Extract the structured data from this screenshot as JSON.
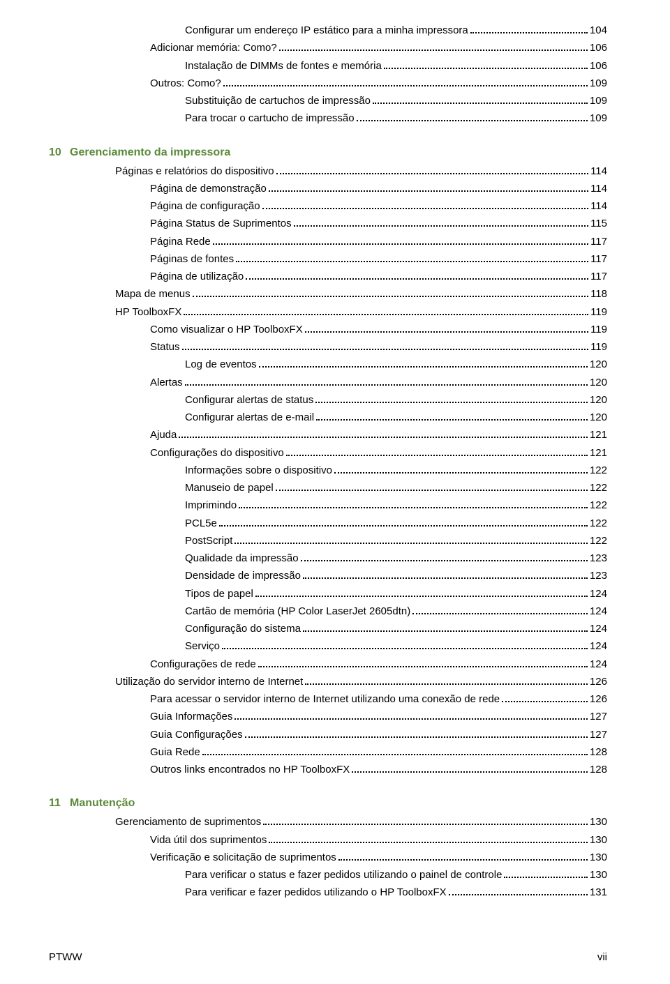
{
  "colors": {
    "chapter_heading": "#5a8a3a",
    "text": "#000000",
    "background": "#ffffff"
  },
  "typography": {
    "body_font": "Arial, sans-serif",
    "body_size_pt": 11,
    "chapter_size_pt": 12,
    "chapter_weight": "bold"
  },
  "toc": [
    {
      "level": 3,
      "label": "Configurar um endereço IP estático para a minha impressora",
      "page": "104"
    },
    {
      "level": 2,
      "label": "Adicionar memória: Como?",
      "page": "106"
    },
    {
      "level": 3,
      "label": "Instalação de DIMMs de fontes e memória",
      "page": "106"
    },
    {
      "level": 2,
      "label": "Outros: Como?",
      "page": "109"
    },
    {
      "level": 3,
      "label": "Substituição de cartuchos de impressão",
      "page": "109"
    },
    {
      "level": 3,
      "label": "Para trocar o cartucho de impressão",
      "page": "109"
    },
    {
      "type": "chapter",
      "num": "10",
      "title": "Gerenciamento da impressora"
    },
    {
      "level": 1,
      "label": "Páginas e relatórios do dispositivo",
      "page": "114"
    },
    {
      "level": 2,
      "label": "Página de demonstração",
      "page": "114"
    },
    {
      "level": 2,
      "label": "Página de configuração",
      "page": "114"
    },
    {
      "level": 2,
      "label": "Página Status de Suprimentos",
      "page": "115"
    },
    {
      "level": 2,
      "label": "Página Rede",
      "page": "117"
    },
    {
      "level": 2,
      "label": "Páginas de fontes",
      "page": "117"
    },
    {
      "level": 2,
      "label": "Página de utilização",
      "page": "117"
    },
    {
      "level": 1,
      "label": "Mapa de menus",
      "page": "118"
    },
    {
      "level": 1,
      "label": "HP ToolboxFX",
      "page": "119"
    },
    {
      "level": 2,
      "label": "Como visualizar o HP ToolboxFX",
      "page": "119"
    },
    {
      "level": 2,
      "label": "Status",
      "page": "119"
    },
    {
      "level": 3,
      "label": "Log de eventos",
      "page": "120"
    },
    {
      "level": 2,
      "label": "Alertas",
      "page": "120"
    },
    {
      "level": 3,
      "label": "Configurar alertas de status",
      "page": "120"
    },
    {
      "level": 3,
      "label": "Configurar alertas de e-mail",
      "page": "120"
    },
    {
      "level": 2,
      "label": "Ajuda",
      "page": "121"
    },
    {
      "level": 2,
      "label": "Configurações do dispositivo",
      "page": "121"
    },
    {
      "level": 3,
      "label": "Informações sobre o dispositivo",
      "page": "122"
    },
    {
      "level": 3,
      "label": "Manuseio de papel",
      "page": "122"
    },
    {
      "level": 3,
      "label": "Imprimindo",
      "page": "122"
    },
    {
      "level": 3,
      "label": "PCL5e",
      "page": "122"
    },
    {
      "level": 3,
      "label": "PostScript",
      "page": "122"
    },
    {
      "level": 3,
      "label": "Qualidade da impressão",
      "page": "123"
    },
    {
      "level": 3,
      "label": "Densidade de impressão",
      "page": "123"
    },
    {
      "level": 3,
      "label": "Tipos de papel",
      "page": "124"
    },
    {
      "level": 3,
      "label": "Cartão de memória (HP Color LaserJet 2605dtn)",
      "page": "124"
    },
    {
      "level": 3,
      "label": "Configuração do sistema",
      "page": "124"
    },
    {
      "level": 3,
      "label": "Serviço",
      "page": "124"
    },
    {
      "level": 2,
      "label": "Configurações de rede",
      "page": "124"
    },
    {
      "level": 1,
      "label": "Utilização do servidor interno de Internet",
      "page": "126"
    },
    {
      "level": 2,
      "label": "Para acessar o servidor interno de Internet utilizando uma conexão de rede",
      "page": "126"
    },
    {
      "level": 2,
      "label": "Guia Informações",
      "page": "127"
    },
    {
      "level": 2,
      "label": "Guia Configurações",
      "page": "127"
    },
    {
      "level": 2,
      "label": "Guia Rede",
      "page": "128"
    },
    {
      "level": 2,
      "label": "Outros links encontrados no HP ToolboxFX",
      "page": "128"
    },
    {
      "type": "chapter",
      "num": "11",
      "title": "Manutenção"
    },
    {
      "level": 1,
      "label": "Gerenciamento de suprimentos",
      "page": "130"
    },
    {
      "level": 2,
      "label": "Vida útil dos suprimentos",
      "page": "130"
    },
    {
      "level": 2,
      "label": "Verificação e solicitação de suprimentos",
      "page": "130"
    },
    {
      "level": 3,
      "label": "Para verificar o status e fazer pedidos utilizando o painel de controle",
      "page": "130"
    },
    {
      "level": 3,
      "label": "Para verificar e fazer pedidos utilizando o HP ToolboxFX",
      "page": "131"
    }
  ],
  "footer": {
    "left": "PTWW",
    "right": "vii"
  }
}
